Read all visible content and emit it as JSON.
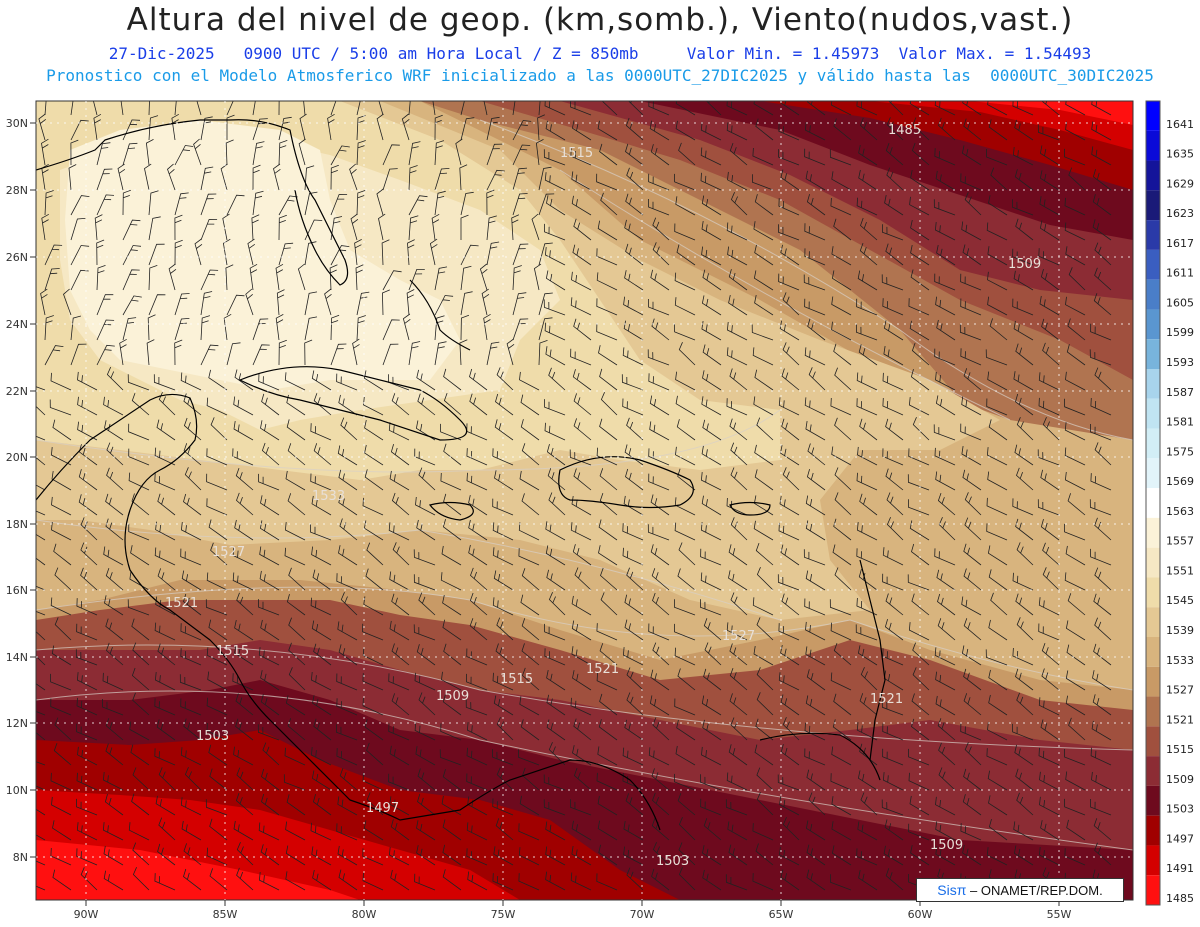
{
  "title": "Altura del nivel de geop. (km,somb.), Viento(nudos,vast.)",
  "subtitle_1": "27-Dic-2025   0900 UTC / 5:00 am Hora Local / Z = 850mb     Valor Min. = 1.45973  Valor Max. = 1.54493",
  "subtitle_2": "Pronostico con el Modelo Atmosferico WRF inicializado a las 0000UTC_27DIC2025 y válido hasta las  0000UTC_30DIC2025",
  "map": {
    "lat_labels": [
      "30N",
      "28N",
      "26N",
      "24N",
      "22N",
      "20N",
      "18N",
      "16N",
      "14N",
      "12N",
      "10N",
      "8N"
    ],
    "lon_labels": [
      "90W",
      "85W",
      "80W",
      "75W",
      "70W",
      "65W",
      "60W",
      "55W"
    ],
    "contour_labels": [
      "1485",
      "1515",
      "1509",
      "1533",
      "1527",
      "1521",
      "1515",
      "1509",
      "1503",
      "1497",
      "1503",
      "1509",
      "1527",
      "1521",
      "1515",
      "1521"
    ]
  },
  "colorbar": {
    "levels": [
      "1641",
      "1635",
      "1629",
      "1623",
      "1617",
      "1611",
      "1605",
      "1599",
      "1593",
      "1587",
      "1581",
      "1575",
      "1569",
      "1563",
      "1557",
      "1551",
      "1545",
      "1539",
      "1533",
      "1527",
      "1521",
      "1515",
      "1509",
      "1503",
      "1497",
      "1491",
      "1485"
    ],
    "colors": [
      "#0000ff",
      "#0a0ad8",
      "#14149a",
      "#1a1a78",
      "#2a3aa8",
      "#3a5ec0",
      "#4a7ec8",
      "#5a96d0",
      "#78b4dc",
      "#a8d4ec",
      "#c0e4f2",
      "#d2eef6",
      "#e2f4fa",
      "#ffffff",
      "#fbf2d8",
      "#f6e8c4",
      "#efdcaa",
      "#e4c894",
      "#d8b47e",
      "#c89a66",
      "#b07450",
      "#a0503e",
      "#8c2c34",
      "#6e0a1e",
      "#a00000",
      "#d40000",
      "#ff1010"
    ]
  },
  "credit": {
    "brand": "Sisπ",
    "text": "– ONAMET/REP.DOM."
  }
}
